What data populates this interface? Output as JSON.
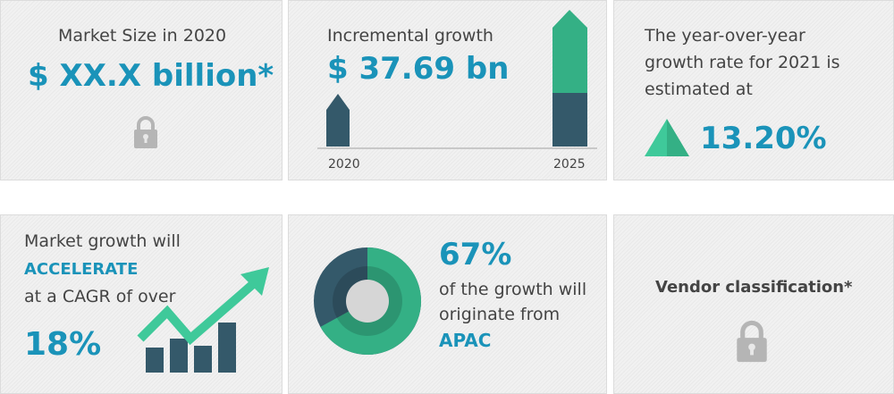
{
  "colors": {
    "accent": "#1a93b9",
    "dark": "#34596a",
    "green": "#34b085",
    "lock": "#b5b5b5"
  },
  "market_size": {
    "label": "Market Size in 2020",
    "value": "$ XX.X billion*",
    "icon": "lock-icon"
  },
  "incremental": {
    "label": "Incremental growth",
    "value": "$ 37.69 bn",
    "years": [
      "2020",
      "2025"
    ]
  },
  "yoy": {
    "lines": [
      "The year-over-year",
      "growth rate for 2021 is",
      "estimated at"
    ],
    "value": "13.20%",
    "icon": "triangle-up-icon"
  },
  "cagr": {
    "line1": "Market growth will",
    "emphasis": "ACCELERATE",
    "line2": "at a CAGR of over",
    "value": "18%",
    "icon": "trend-up-chart-icon"
  },
  "region": {
    "value": "67%",
    "line1": "of the growth will",
    "line2": "originate from",
    "region": "APAC",
    "share": 0.67
  },
  "vendor": {
    "label": "Vendor classification*",
    "icon": "lock-icon"
  }
}
